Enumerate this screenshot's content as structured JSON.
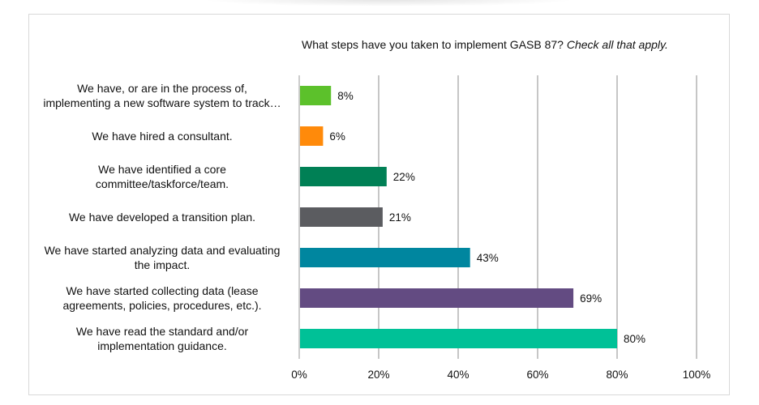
{
  "chart_data": {
    "type": "bar",
    "orientation": "horizontal",
    "title": "What steps have you taken to implement GASB 87?",
    "title_note": "Check all that apply.",
    "xlabel": "",
    "ylabel": "",
    "xlim": [
      0,
      100
    ],
    "x_ticks": [
      0,
      20,
      40,
      60,
      80,
      100
    ],
    "x_tick_labels": [
      "0%",
      "20%",
      "40%",
      "60%",
      "80%",
      "100%"
    ],
    "grid": "vertical",
    "categories": [
      [
        "We have, or are in the process of,",
        "implementing a new software system to track…"
      ],
      [
        "We have hired a consultant."
      ],
      [
        "We have identified a core",
        "committee/taskforce/team."
      ],
      [
        "We have developed a transition plan."
      ],
      [
        "We have started analyzing data and evaluating",
        "the impact."
      ],
      [
        "We have started collecting data (lease",
        "agreements, policies, procedures, etc.)."
      ],
      [
        "We have read the standard and/or",
        "implementation guidance."
      ]
    ],
    "values": [
      8,
      6,
      22,
      21,
      43,
      69,
      80
    ],
    "value_labels": [
      "8%",
      "6%",
      "22%",
      "21%",
      "43%",
      "69%",
      "80%"
    ],
    "colors": [
      "#5cc12b",
      "#ff8a0a",
      "#008055",
      "#5b5c60",
      "#00869f",
      "#634b82",
      "#00c197"
    ]
  }
}
